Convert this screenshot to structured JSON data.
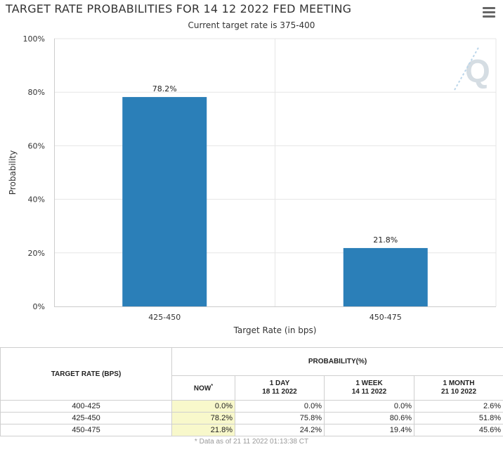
{
  "header": {
    "title": "TARGET RATE PROBABILITIES FOR 14 12 2022 FED MEETING",
    "subtitle": "Current target rate is 375-400"
  },
  "menu": {
    "icon": "hamburger-menu-icon"
  },
  "watermark": {
    "icon": "quikstrike-q-logo"
  },
  "colors": {
    "bar": "#2b7fb8",
    "grid": "#e6e6e6",
    "now_highlight": "#f8f8cb"
  },
  "chart_data": {
    "type": "bar",
    "title": "TARGET RATE PROBABILITIES FOR 14 12 2022 FED MEETING",
    "subtitle": "Current target rate is 375-400",
    "categories": [
      "425-450",
      "450-475"
    ],
    "values": [
      78.2,
      21.8
    ],
    "data_labels": [
      "78.2%",
      "21.8%"
    ],
    "xlabel": "Target Rate (in bps)",
    "ylabel": "Probability",
    "ylim": [
      0,
      100
    ],
    "yticks": [
      "0%",
      "20%",
      "40%",
      "60%",
      "80%",
      "100%"
    ],
    "grid": true,
    "legend": "none"
  },
  "table": {
    "rate_header": "TARGET RATE (BPS)",
    "prob_header": "PROBABILITY(%)",
    "columns": [
      {
        "line1": "NOW",
        "line2": "",
        "star": "*"
      },
      {
        "line1": "1 DAY",
        "line2": "18 11 2022",
        "star": ""
      },
      {
        "line1": "1 WEEK",
        "line2": "14 11 2022",
        "star": ""
      },
      {
        "line1": "1 MONTH",
        "line2": "21 10 2022",
        "star": ""
      }
    ],
    "rows": [
      {
        "rate": "400-425",
        "now": "0.0%",
        "day": "0.0%",
        "week": "0.0%",
        "month": "2.6%"
      },
      {
        "rate": "425-450",
        "now": "78.2%",
        "day": "75.8%",
        "week": "80.6%",
        "month": "51.8%"
      },
      {
        "rate": "450-475",
        "now": "21.8%",
        "day": "24.2%",
        "week": "19.4%",
        "month": "45.6%"
      }
    ],
    "footnote": "* Data as of 21 11 2022 01:13:38 CT"
  }
}
